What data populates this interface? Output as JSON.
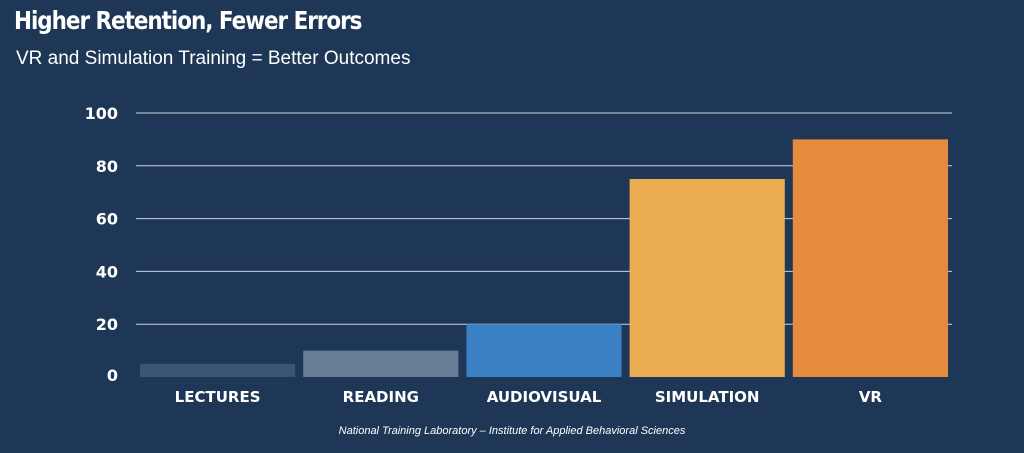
{
  "title": "Higher Retention, Fewer Errors",
  "subtitle": "VR and Simulation Training = Better Outcomes",
  "source": "National Training Laboratory – Institute for Applied Behavioral Sciences",
  "chart_data": {
    "type": "bar",
    "categories": [
      "LECTURES",
      "READING",
      "AUDIOVISUAL",
      "SIMULATION",
      "VR"
    ],
    "values": [
      5,
      10,
      20,
      75,
      90
    ],
    "bar_colors": [
      "#3b5674",
      "#667d96",
      "#3b7fc4",
      "#ecac52",
      "#e58b3e"
    ],
    "y_ticks": [
      0,
      20,
      40,
      60,
      80,
      100
    ],
    "ylim": [
      0,
      100
    ],
    "grid": true,
    "gridline_color": "#c9d3de",
    "background": "#1e3756"
  }
}
